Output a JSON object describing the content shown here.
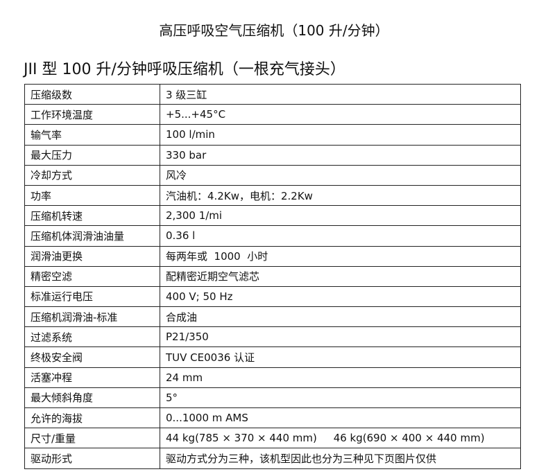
{
  "title": "高压呼吸空气压缩机（100 升/分钟）",
  "subtitle": "JII 型 100 升/分钟呼吸压缩机（一根充气接头）",
  "rows": [
    {
      "k": "压缩级数",
      "v": "3 级三缸"
    },
    {
      "k": "工作环境温度",
      "v": "+5...+45°C"
    },
    {
      "k": "输气率",
      "v": "100 l/min"
    },
    {
      "k": "最大压力",
      "v": "330 bar"
    },
    {
      "k": "冷却方式",
      "v": "风冷"
    },
    {
      "k": "功率",
      "v": "汽油机：4.2Kw，电机：2.2Kw"
    },
    {
      "k": "压缩机转速",
      "v": "2,300 1/mi"
    },
    {
      "k": "压缩机体润滑油油量",
      "v": "0.36 l"
    },
    {
      "k": "润滑油更换",
      "v": "每两年或  1000  小时"
    },
    {
      "k": "精密空滤",
      "v": "配精密近期空气滤芯"
    },
    {
      "k": "标准运行电压",
      "v": "400 V; 50 Hz"
    },
    {
      "k": "压缩机润滑油-标准",
      "v": "合成油"
    },
    {
      "k": "过滤系统",
      "v": "P21/350"
    },
    {
      "k": "终极安全阀",
      "v": "TUV CE0036 认证"
    },
    {
      "k": "活塞冲程",
      "v": "24 mm"
    },
    {
      "k": "最大倾斜角度",
      "v": "5°"
    },
    {
      "k": "允许的海拔",
      "v": "0...1000 m AMS"
    },
    {
      "k": "尺寸/重量",
      "v": "44 kg(785 × 370 × 440 mm)     46 kg(690 × 400 × 440 mm)"
    },
    {
      "k": "驱动形式",
      "v": "驱动方式分为三种，该机型因此也分为三种见下页图片仅供"
    }
  ]
}
